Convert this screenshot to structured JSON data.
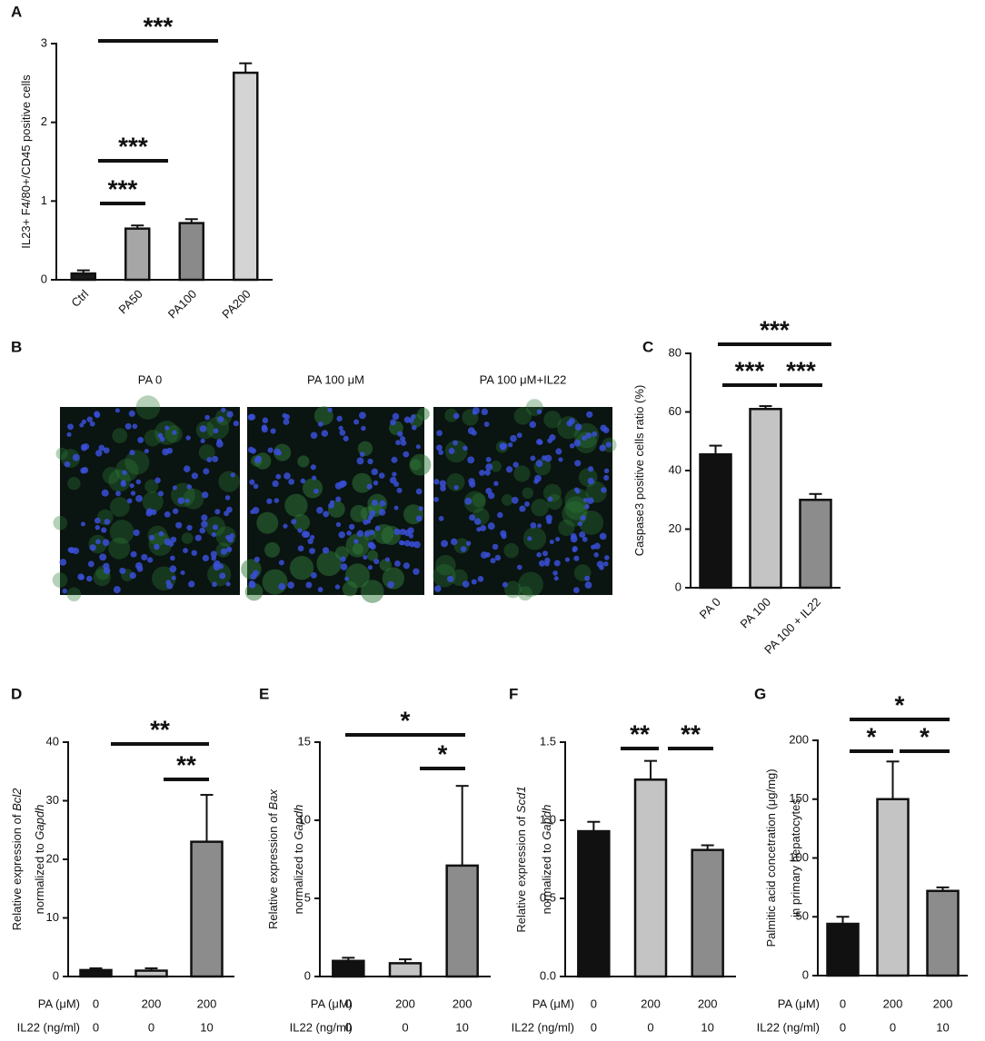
{
  "chart_data": [
    {
      "type": "bar",
      "label": "A",
      "ylabel": [
        [
          "IL23+ F4/80+/CD45 positive cells"
        ]
      ],
      "categories": [
        "Ctrl",
        "PA50",
        "PA100",
        "PA200"
      ],
      "values": [
        0.08,
        0.65,
        0.72,
        2.63
      ],
      "errors": [
        0.04,
        0.04,
        0.05,
        0.12
      ],
      "colors": [
        "#1a1a1a",
        "#a6a6a6",
        "#8a8a8a",
        "#d4d4d4"
      ],
      "ylim": [
        0,
        3
      ],
      "yticks": [
        0,
        1,
        2,
        3
      ],
      "annotations": [
        "***",
        "***",
        "***"
      ]
    },
    {
      "type": "image",
      "label": "B",
      "images": [
        {
          "title": "PA 0"
        },
        {
          "title": "PA 100 μM"
        },
        {
          "title": "PA 100 μM+IL22"
        }
      ]
    },
    {
      "type": "bar",
      "label": "C",
      "ylabel": [
        [
          "Caspase3 positive cells ratio (%)"
        ]
      ],
      "categories": [
        "PA 0",
        "PA 100",
        "PA 100 + IL22"
      ],
      "values": [
        45.5,
        61,
        30
      ],
      "errors": [
        3,
        1,
        2
      ],
      "colors": [
        "#111111",
        "#c4c4c4",
        "#8c8c8c"
      ],
      "ylim": [
        0,
        80
      ],
      "yticks": [
        0,
        20,
        40,
        60,
        80
      ],
      "annotations": [
        "***",
        "***",
        "***"
      ]
    },
    {
      "type": "bar",
      "label": "D",
      "ylabel": [
        [
          "Relative expression of ",
          "Bcl2"
        ],
        [
          "normalized to ",
          "Gapdh"
        ]
      ],
      "values": [
        1.1,
        1.0,
        23
      ],
      "errors": [
        0.3,
        0.4,
        8
      ],
      "colors": [
        "#111111",
        "#c4c4c4",
        "#8c8c8c"
      ],
      "ylim": [
        0,
        40
      ],
      "yticks": [
        0,
        10,
        20,
        30,
        40
      ],
      "conditions": [
        {
          "name": "PA (μM)",
          "values": [
            0,
            200,
            200
          ]
        },
        {
          "name": "IL22 (ng/ml)",
          "values": [
            0,
            0,
            10
          ]
        }
      ],
      "annotations": [
        "**",
        "**"
      ]
    },
    {
      "type": "bar",
      "label": "E",
      "ylabel": [
        [
          "Relative expression of ",
          "Bax"
        ],
        [
          "normalized to ",
          "Gapdh"
        ]
      ],
      "values": [
        1.0,
        0.85,
        7.1
      ],
      "errors": [
        0.2,
        0.25,
        5.1
      ],
      "colors": [
        "#111111",
        "#c4c4c4",
        "#8c8c8c"
      ],
      "ylim": [
        0,
        15
      ],
      "yticks": [
        0,
        5,
        10,
        15
      ],
      "conditions": [
        {
          "name": "PA (μM)",
          "values": [
            0,
            200,
            200
          ]
        },
        {
          "name": "IL22 (ng/ml)",
          "values": [
            0,
            0,
            10
          ]
        }
      ],
      "annotations": [
        "*",
        "*"
      ]
    },
    {
      "type": "bar",
      "label": "F",
      "ylabel": [
        [
          "Relative expression of ",
          "Scd1"
        ],
        [
          "normalized to ",
          "Gapdh"
        ]
      ],
      "values": [
        0.93,
        1.26,
        0.81
      ],
      "errors": [
        0.06,
        0.12,
        0.03
      ],
      "colors": [
        "#111111",
        "#c4c4c4",
        "#8c8c8c"
      ],
      "ylim": [
        0,
        1.5
      ],
      "yticks": [
        {
          "value": 0,
          "label": "0.0"
        },
        0.5,
        {
          "value": 1,
          "label": "1.0"
        },
        1.5
      ],
      "conditions": [
        {
          "name": "PA (μM)",
          "values": [
            0,
            200,
            200
          ]
        },
        {
          "name": "IL22 (ng/ml)",
          "values": [
            0,
            0,
            10
          ]
        }
      ],
      "annotations": [
        "**",
        "**"
      ]
    },
    {
      "type": "bar",
      "label": "G",
      "ylabel": [
        [
          "Palmitic acid concetration (μg/mg)"
        ],
        [
          "in primary hepatocytes"
        ]
      ],
      "values": [
        44,
        150,
        72
      ],
      "errors": [
        6,
        32,
        3
      ],
      "colors": [
        "#111111",
        "#c4c4c4",
        "#8c8c8c"
      ],
      "ylim": [
        0,
        200
      ],
      "yticks": [
        0,
        50,
        100,
        150,
        200
      ],
      "conditions": [
        {
          "name": "PA (μM)",
          "values": [
            0,
            200,
            200
          ]
        },
        {
          "name": "IL22 (ng/ml)",
          "values": [
            0,
            0,
            10
          ]
        }
      ],
      "annotations": [
        "*",
        "*",
        "*"
      ]
    }
  ]
}
